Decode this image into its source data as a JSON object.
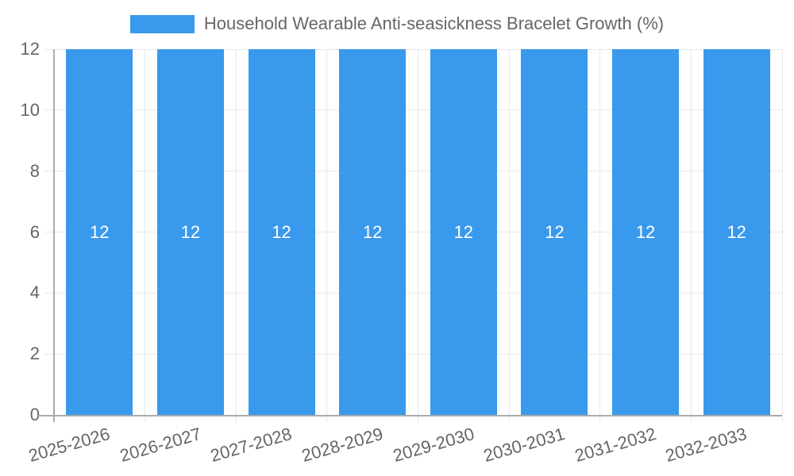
{
  "legend": {
    "label": "Household Wearable Anti-seasickness Bracelet Growth (%)"
  },
  "colors": {
    "bar": "#3999EC",
    "bar_value_text": "#FFFFFF",
    "grid": "#E8E8E8",
    "axis": "#ABABAB",
    "tick_text": "#666666",
    "background": "#FFFFFF"
  },
  "chart_data": {
    "type": "bar",
    "title": "Household Wearable Anti-seasickness Bracelet Growth (%)",
    "categories": [
      "2025-2026",
      "2026-2027",
      "2027-2028",
      "2028-2029",
      "2029-2030",
      "2030-2031",
      "2031-2032",
      "2032-2033"
    ],
    "series": [
      {
        "name": "Household Wearable Anti-seasickness Bracelet Growth (%)",
        "values": [
          12,
          12,
          12,
          12,
          12,
          12,
          12,
          12
        ]
      }
    ],
    "value_labels_shown": true,
    "xlabel": "",
    "ylabel": "",
    "ylim": [
      0,
      12
    ],
    "yticks": [
      0,
      2,
      4,
      6,
      8,
      10,
      12
    ],
    "grid": true,
    "legend_position": "top",
    "x_label_rotation_deg": -16
  }
}
